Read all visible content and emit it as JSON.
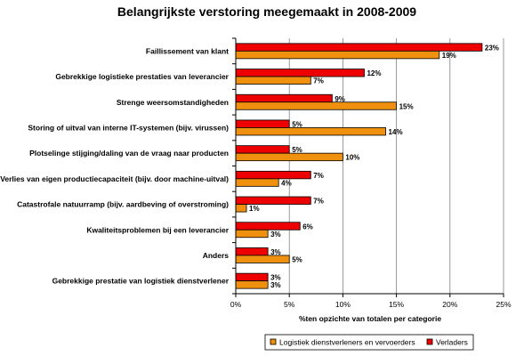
{
  "chart_data": {
    "type": "bar",
    "orientation": "horizontal",
    "title": "Belangrijkste verstoring meegemaakt in 2008-2009",
    "xlabel": "%ten opzichte van totalen per categorie",
    "ylabel": "",
    "xlim": [
      0,
      25
    ],
    "xticks": [
      "0%",
      "5%",
      "10%",
      "15%",
      "20%",
      "25%"
    ],
    "xtick_values": [
      0,
      5,
      10,
      15,
      20,
      25
    ],
    "grid": true,
    "legend_position": "bottom",
    "categories": [
      "Faillissement van klant",
      "Gebrekkige logistieke prestaties van leverancier",
      "Strenge weersomstandigheden",
      "Storing of uitval van interne IT-systemen (bijv. virussen)",
      "Plotselinge stijging/daling van de vraag naar producten",
      "Verlies van eigen productiecapaciteit (bijv. door machine-uitval)",
      "Catastrofale natuurramp (bijv. aardbeving of overstroming)",
      "Kwaliteitsproblemen bij een leverancier",
      "Anders",
      "Gebrekkige prestatie van logistiek dienstverlener"
    ],
    "series": [
      {
        "name": "Verladers",
        "color": "#ee0000",
        "values": [
          23,
          12,
          9,
          5,
          5,
          7,
          7,
          6,
          3,
          3
        ],
        "labels": [
          "23%",
          "12%",
          "9%",
          "5%",
          "5%",
          "7%",
          "7%",
          "6%",
          "3%",
          "3%"
        ]
      },
      {
        "name": "Logistiek dienstverleners en vervoerders",
        "color": "#f0900f",
        "values": [
          19,
          7,
          15,
          14,
          10,
          4,
          1,
          3,
          5,
          3
        ],
        "labels": [
          "19%",
          "7%",
          "15%",
          "14%",
          "10%",
          "4%",
          "1%",
          "3%",
          "5%",
          "3%"
        ]
      }
    ],
    "legend_order": [
      "Logistiek dienstverleners en vervoerders",
      "Verladers"
    ]
  }
}
